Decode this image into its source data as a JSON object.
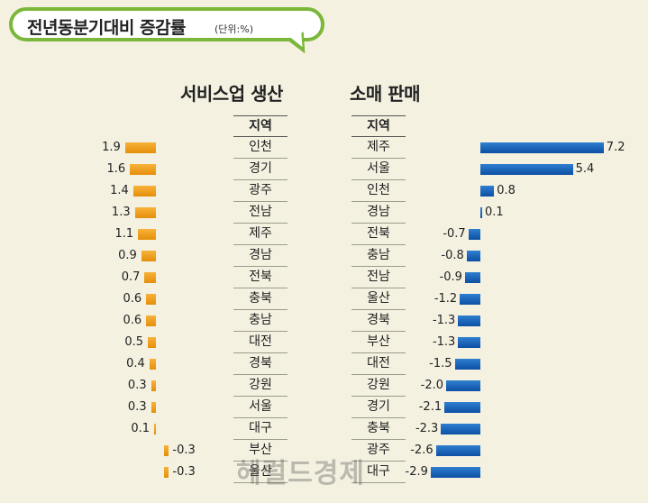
{
  "header": {
    "title": "전년동분기대비 증감률",
    "unit": "(단위:%)"
  },
  "watermark": "헤럴드경제",
  "colors": {
    "service": "#f0a01e",
    "retail": "#1566c0",
    "bubble_border": "#7bb73a"
  },
  "chart_data": [
    {
      "type": "bar",
      "title": "서비스업 생산",
      "column_header": "지역",
      "categories": [
        "인천",
        "경기",
        "광주",
        "전남",
        "제주",
        "경남",
        "전북",
        "충북",
        "충남",
        "대전",
        "경북",
        "강원",
        "서울",
        "대구",
        "부산",
        "울산"
      ],
      "values": [
        1.9,
        1.6,
        1.4,
        1.3,
        1.1,
        0.9,
        0.7,
        0.6,
        0.6,
        0.5,
        0.4,
        0.3,
        0.3,
        0.1,
        -0.3,
        -0.3
      ],
      "value_labels": [
        "1.9",
        "1.6",
        "1.4",
        "1.3",
        "1.1",
        "0.9",
        "0.7",
        "0.6",
        "0.6",
        "0.5",
        "0.4",
        "0.3",
        "0.3",
        "0.1",
        "-0.3",
        "-0.3"
      ]
    },
    {
      "type": "bar",
      "title": "소매 판매",
      "column_header": "지역",
      "categories": [
        "제주",
        "서울",
        "인천",
        "경남",
        "전북",
        "충남",
        "전남",
        "울산",
        "경북",
        "부산",
        "대전",
        "강원",
        "경기",
        "충북",
        "광주",
        "대구"
      ],
      "values": [
        7.2,
        5.4,
        0.8,
        0.1,
        -0.7,
        -0.8,
        -0.9,
        -1.2,
        -1.3,
        -1.3,
        -1.5,
        -2.0,
        -2.1,
        -2.3,
        -2.6,
        -2.9
      ],
      "value_labels": [
        "7.2",
        "5.4",
        "0.8",
        "0.1",
        "-0.7",
        "-0.8",
        "-0.9",
        "-1.2",
        "-1.3",
        "-1.3",
        "-1.5",
        "-2.0",
        "-2.1",
        "-2.3",
        "-2.6",
        "-2.9"
      ]
    }
  ]
}
